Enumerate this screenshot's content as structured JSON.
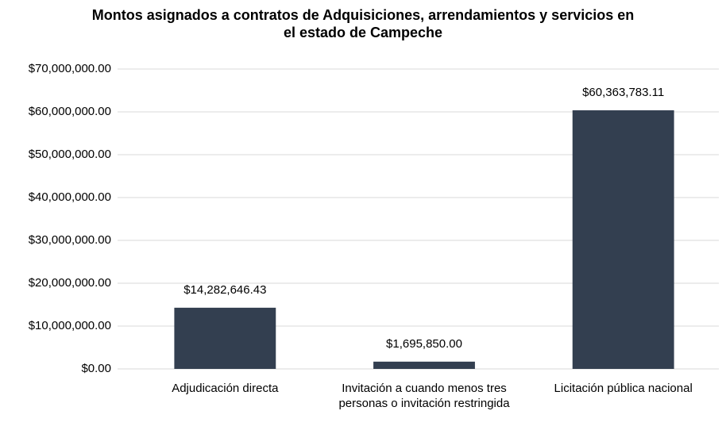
{
  "chart_data": {
    "type": "bar",
    "title": "Montos asignados a contratos de Adquisiciones, arrendamientos y servicios en el estado de Campeche",
    "categories": [
      "Adjudicación directa",
      "Invitación a cuando menos tres personas o invitación restringida",
      "Licitación pública nacional"
    ],
    "values": [
      14282646.43,
      1695850.0,
      60363783.11
    ],
    "value_labels": [
      "$14,282,646.43",
      "$1,695,850.00",
      "$60,363,783.11"
    ],
    "color": "#333f50",
    "ylim": [
      0,
      70000000
    ],
    "yticks": [
      {
        "value": 0,
        "label": "$0.00"
      },
      {
        "value": 10000000,
        "label": "$10,000,000.00"
      },
      {
        "value": 20000000,
        "label": "$20,000,000.00"
      },
      {
        "value": 30000000,
        "label": "$30,000,000.00"
      },
      {
        "value": 40000000,
        "label": "$40,000,000.00"
      },
      {
        "value": 50000000,
        "label": "$50,000,000.00"
      },
      {
        "value": 60000000,
        "label": "$60,000,000.00"
      },
      {
        "value": 70000000,
        "label": "$70,000,000.00"
      }
    ],
    "grid": true
  }
}
